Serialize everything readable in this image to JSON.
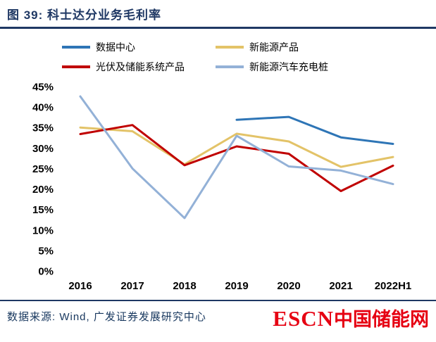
{
  "title": "图 39: 科士达分业务毛利率",
  "footer": {
    "source": "数据来源: Wind, 广发证券发展研究中心",
    "watermark_escn": "ESCN",
    "watermark_name": "中国储能网"
  },
  "colors": {
    "accent_navy": "#1F3864",
    "watermark_red": "#E60012"
  },
  "chart_data": {
    "type": "line",
    "title": "科士达分业务毛利率",
    "categories": [
      "2016",
      "2017",
      "2018",
      "2019",
      "2020",
      "2021",
      "2022H1"
    ],
    "series": [
      {
        "name": "数据中心",
        "color": "#2E75B6",
        "values": [
          null,
          null,
          null,
          36.9,
          37.6,
          32.6,
          31.0
        ]
      },
      {
        "name": "新能源产品",
        "color": "#E3C368",
        "values": [
          35.0,
          34.1,
          26.0,
          33.5,
          31.6,
          25.4,
          27.8
        ]
      },
      {
        "name": "光伏及储能系统产品",
        "color": "#C00000",
        "values": [
          33.4,
          35.6,
          25.8,
          30.4,
          28.6,
          19.5,
          25.7
        ]
      },
      {
        "name": "新能源汽车充电桩",
        "color": "#93B1D7",
        "values": [
          42.6,
          25.0,
          12.9,
          33.0,
          25.5,
          24.5,
          21.2
        ]
      }
    ],
    "ylim": [
      0,
      45
    ],
    "ytick_step": 5,
    "ytick_suffix": "%",
    "grid": false,
    "legend_position": "top"
  }
}
